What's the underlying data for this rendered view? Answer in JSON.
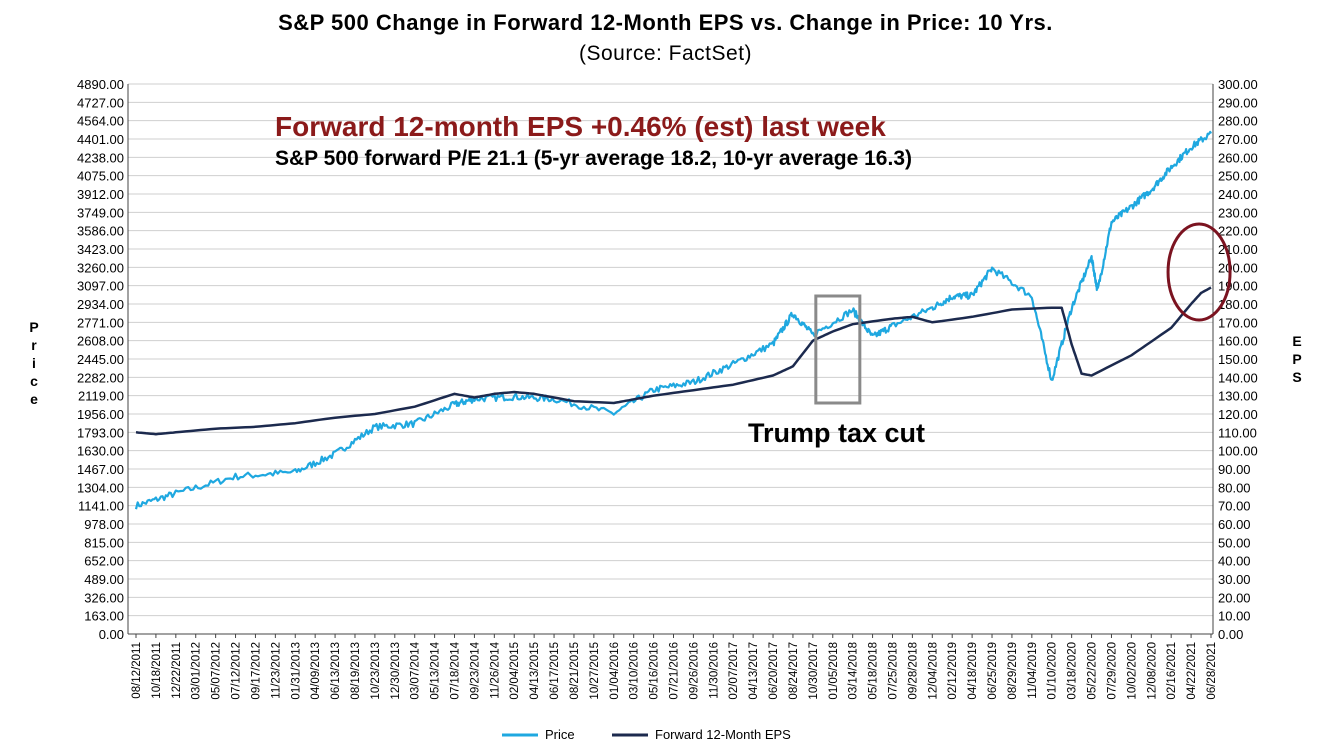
{
  "chart_data": {
    "type": "line",
    "title": "S&P 500 Change in Forward 12-Month EPS vs. Change in Price: 10 Yrs.",
    "subtitle": "(Source: FactSet)",
    "ylabel": "Price",
    "ylabel_right": "EPS",
    "ylim": [
      0,
      4890
    ],
    "ylim_right": [
      0,
      300
    ],
    "y_ticks": [
      "4890.00",
      "4727.00",
      "4564.00",
      "4401.00",
      "4238.00",
      "4075.00",
      "3912.00",
      "3749.00",
      "3586.00",
      "3423.00",
      "3260.00",
      "3097.00",
      "2934.00",
      "2771.00",
      "2608.00",
      "2445.00",
      "2282.00",
      "2119.00",
      "1956.00",
      "1793.00",
      "1630.00",
      "1467.00",
      "1304.00",
      "1141.00",
      "978.00",
      "815.00",
      "652.00",
      "489.00",
      "326.00",
      "163.00",
      "0.00"
    ],
    "y_ticks_right": [
      "300.00",
      "290.00",
      "280.00",
      "270.00",
      "260.00",
      "250.00",
      "240.00",
      "230.00",
      "220.00",
      "210.00",
      "200.00",
      "190.00",
      "180.00",
      "170.00",
      "160.00",
      "150.00",
      "140.00",
      "130.00",
      "120.00",
      "110.00",
      "100.00",
      "90.00",
      "80.00",
      "70.00",
      "60.00",
      "50.00",
      "40.00",
      "30.00",
      "20.00",
      "10.00",
      "0.00"
    ],
    "x_ticks": [
      "08/12/2011",
      "10/18/2011",
      "12/22/2011",
      "03/01/2012",
      "05/07/2012",
      "07/12/2012",
      "09/17/2012",
      "11/23/2012",
      "01/31/2013",
      "04/09/2013",
      "06/13/2013",
      "08/19/2013",
      "10/23/2013",
      "12/30/2013",
      "03/07/2014",
      "05/13/2014",
      "07/18/2014",
      "09/23/2014",
      "11/26/2014",
      "02/04/2015",
      "04/13/2015",
      "06/17/2015",
      "08/21/2015",
      "10/27/2015",
      "01/04/2016",
      "03/10/2016",
      "05/16/2016",
      "07/21/2016",
      "09/26/2016",
      "11/30/2016",
      "02/07/2017",
      "04/13/2017",
      "06/20/2017",
      "08/24/2017",
      "10/30/2017",
      "01/05/2018",
      "03/14/2018",
      "05/18/2018",
      "07/25/2018",
      "09/28/2018",
      "12/04/2018",
      "02/12/2019",
      "04/18/2019",
      "06/25/2019",
      "08/29/2019",
      "11/04/2019",
      "01/10/2020",
      "03/18/2020",
      "05/22/2020",
      "07/29/2020",
      "10/02/2020",
      "12/08/2020",
      "02/16/2021",
      "04/22/2021",
      "06/28/2021"
    ],
    "series": [
      {
        "name": "Price",
        "color": "#1fa8e0",
        "axis": "left",
        "x": [
          0,
          2,
          5,
          8,
          10,
          12,
          14,
          16,
          17,
          19,
          21,
          24,
          26,
          28,
          30,
          32,
          33,
          34,
          36,
          37,
          38,
          40,
          41,
          42,
          43,
          45,
          46,
          47,
          48,
          48.3,
          49,
          50,
          51,
          52,
          53,
          54
        ],
        "y": [
          1140,
          1250,
          1400,
          1440,
          1600,
          1840,
          1870,
          2040,
          2090,
          2110,
          2090,
          1960,
          2170,
          2240,
          2400,
          2580,
          2850,
          2660,
          2880,
          2640,
          2740,
          2900,
          3000,
          3010,
          3250,
          3000,
          2250,
          2900,
          3350,
          3050,
          3660,
          3800,
          3950,
          4150,
          4330,
          4450
        ]
      },
      {
        "name": "Forward 12-Month EPS",
        "color": "#1c2a4e",
        "axis": "right",
        "x": [
          0,
          1,
          2,
          4,
          6,
          8,
          10,
          12,
          14,
          16,
          17,
          18,
          19,
          20,
          22,
          24,
          25,
          26,
          28,
          30,
          32,
          33,
          34,
          35,
          36,
          38,
          39,
          40,
          42,
          44,
          46,
          46.5,
          47,
          47.5,
          48,
          50,
          52,
          53,
          53.5,
          54
        ],
        "y": [
          110,
          109,
          110,
          112,
          113,
          115,
          118,
          120,
          124,
          131,
          129,
          131,
          132,
          131,
          127,
          126,
          128,
          130,
          133,
          136,
          141,
          146,
          160,
          165,
          169,
          172,
          173,
          170,
          173,
          177,
          178,
          178,
          158,
          142,
          141,
          152,
          167,
          180,
          186,
          189
        ]
      }
    ],
    "annotations": {
      "eps_change": "Forward 12-month EPS +0.46% (est) last week",
      "pe_note": "S&P 500 forward P/E 21.1 (5-yr average 18.2, 10-yr average 16.3)",
      "tax_cut": "Trump tax cut"
    },
    "legend": [
      "Price",
      "Forward 12-Month EPS"
    ],
    "grid": true
  }
}
